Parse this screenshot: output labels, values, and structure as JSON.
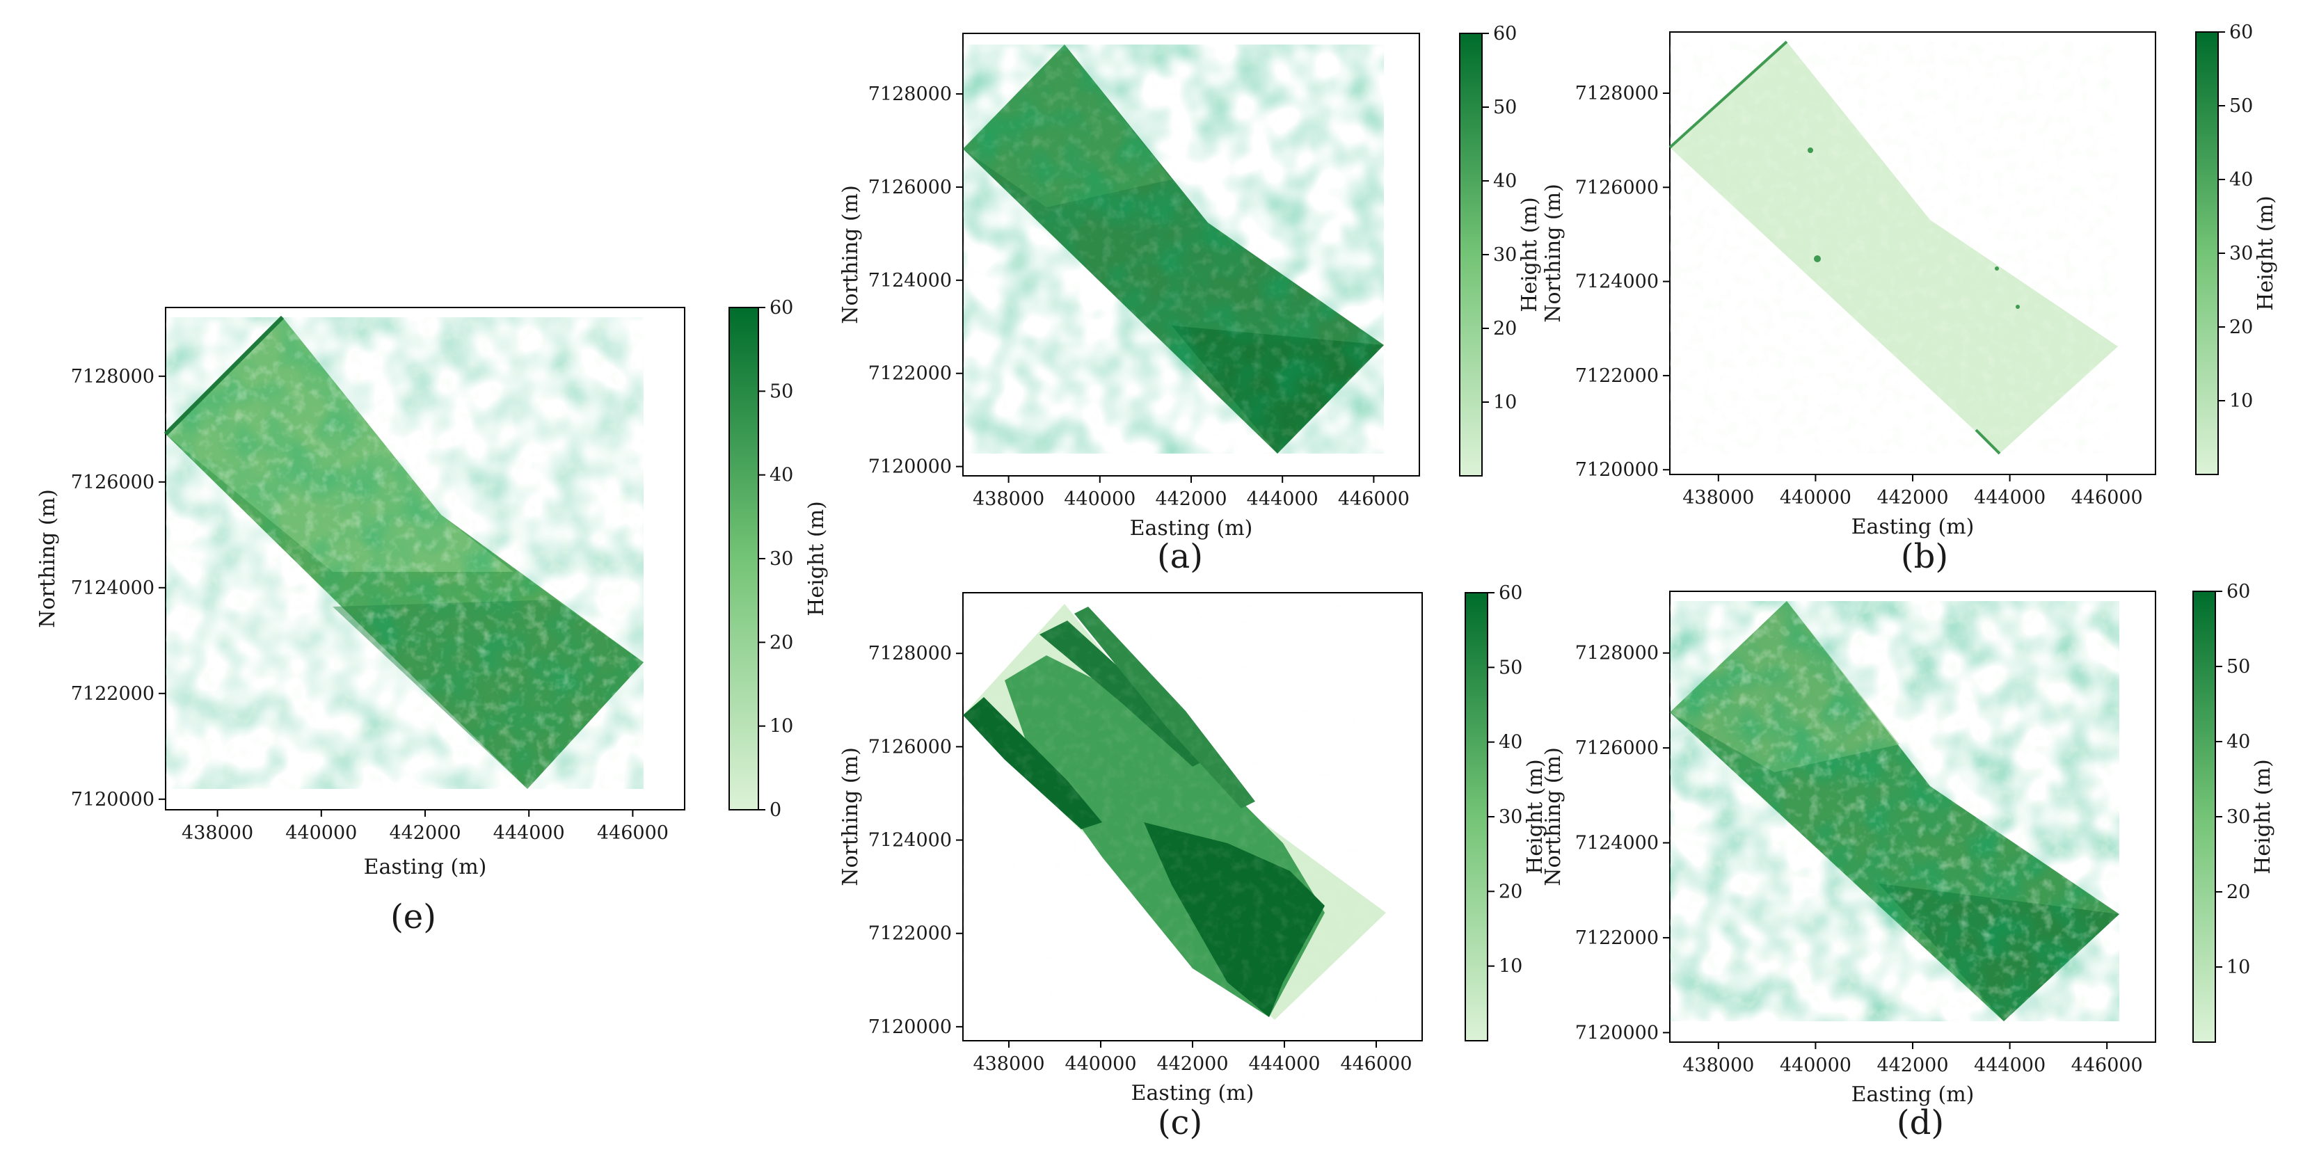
{
  "colorbar": {
    "label": "Height (m)",
    "low_color": "#dcf2d7",
    "mid_color": "#74c476",
    "high_color": "#006d2c"
  },
  "panels": [
    {
      "id": "e",
      "label": "(e)",
      "xlabel": "Easting (m)",
      "ylabel": "Northing (m)",
      "xticks": [
        "438000",
        "440000",
        "442000",
        "444000",
        "446000"
      ],
      "yticks": [
        "7120000",
        "7122000",
        "7124000",
        "7126000",
        "7128000"
      ],
      "cbar_ticks": [
        "0",
        "10",
        "20",
        "30",
        "40",
        "50",
        "60"
      ],
      "mean_shade": 0.55,
      "pattern": "textured-medium"
    },
    {
      "id": "a",
      "label": "(a)",
      "xlabel": "Easting (m)",
      "ylabel": "Northing (m)",
      "xticks": [
        "438000",
        "440000",
        "442000",
        "444000",
        "446000"
      ],
      "yticks": [
        "7120000",
        "7122000",
        "7124000",
        "7126000",
        "7128000"
      ],
      "cbar_ticks": [
        "10",
        "20",
        "30",
        "40",
        "50",
        "60"
      ],
      "mean_shade": 0.72,
      "pattern": "textured-dark"
    },
    {
      "id": "b",
      "label": "(b)",
      "xlabel": "Easting (m)",
      "ylabel": "Northing (m)",
      "xticks": [
        "438000",
        "440000",
        "442000",
        "444000",
        "446000"
      ],
      "yticks": [
        "7120000",
        "7122000",
        "7124000",
        "7126000",
        "7128000"
      ],
      "cbar_ticks": [
        "10",
        "20",
        "30",
        "40",
        "50",
        "60"
      ],
      "mean_shade": 0.1,
      "pattern": "flat-light"
    },
    {
      "id": "c",
      "label": "(c)",
      "xlabel": "Easting (m)",
      "ylabel": "Northing (m)",
      "xticks": [
        "438000",
        "440000",
        "442000",
        "444000",
        "446000"
      ],
      "yticks": [
        "7120000",
        "7122000",
        "7124000",
        "7126000",
        "7128000"
      ],
      "cbar_ticks": [
        "10",
        "20",
        "30",
        "40",
        "50",
        "60"
      ],
      "mean_shade": 0.45,
      "pattern": "banded"
    },
    {
      "id": "d",
      "label": "(d)",
      "xlabel": "Easting (m)",
      "ylabel": "Northing (m)",
      "xticks": [
        "438000",
        "440000",
        "442000",
        "444000",
        "446000"
      ],
      "yticks": [
        "7120000",
        "7122000",
        "7124000",
        "7126000",
        "7128000"
      ],
      "cbar_ticks": [
        "10",
        "20",
        "30",
        "40",
        "50",
        "60"
      ],
      "mean_shade": 0.6,
      "pattern": "textured-mixed"
    }
  ]
}
